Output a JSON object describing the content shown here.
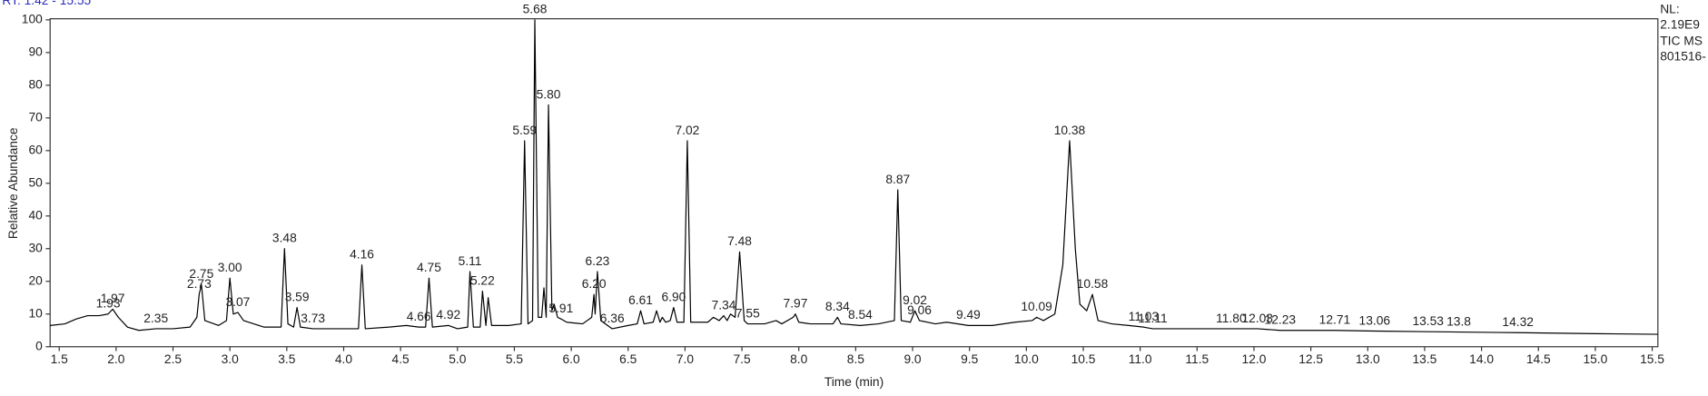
{
  "chart_data": {
    "type": "line",
    "header": "RT: 1.42 - 15.55",
    "info": [
      "NL:",
      "2.19E9",
      "TIC  MS",
      "801516-"
    ],
    "x_label": "Time (min)",
    "y_label": "Relative Abundance",
    "color": "#000000",
    "xlim": [
      1.42,
      15.55
    ],
    "ylim": [
      0,
      100
    ],
    "yticks": [
      0,
      10,
      20,
      30,
      40,
      50,
      60,
      70,
      80,
      90,
      100
    ],
    "xticks": [
      1.5,
      {
        "value": 2,
        "label": "2.0"
      },
      2.5,
      {
        "value": 3,
        "label": "3.0"
      },
      3.5,
      {
        "value": 4,
        "label": "4.0"
      },
      4.5,
      {
        "value": 5,
        "label": "5.0"
      },
      5.5,
      {
        "value": 6,
        "label": "6.0"
      },
      6.5,
      {
        "value": 7,
        "label": "7.0"
      },
      7.5,
      {
        "value": 8,
        "label": "8.0"
      },
      8.5,
      {
        "value": 9,
        "label": "9.0"
      },
      9.5,
      {
        "value": 10,
        "label": "10.0"
      },
      10.5,
      {
        "value": 11,
        "label": "11.0"
      },
      11.5,
      {
        "value": 12,
        "label": "12.0"
      },
      12.5,
      {
        "value": 13,
        "label": "13.0"
      },
      13.5,
      {
        "value": 14,
        "label": "14.0"
      },
      14.5,
      {
        "value": 15,
        "label": "15.0"
      },
      15.5
    ],
    "x": [
      1.42,
      1.55,
      1.65,
      1.75,
      1.85,
      1.93,
      1.97,
      2.02,
      2.1,
      2.2,
      2.35,
      2.5,
      2.65,
      2.71,
      2.73,
      2.75,
      2.78,
      2.9,
      2.97,
      3.0,
      3.03,
      3.07,
      3.12,
      3.3,
      3.45,
      3.48,
      3.51,
      3.56,
      3.59,
      3.62,
      3.73,
      3.9,
      4.13,
      4.16,
      4.19,
      4.4,
      4.55,
      4.66,
      4.72,
      4.75,
      4.78,
      4.92,
      5.0,
      5.09,
      5.11,
      5.14,
      5.2,
      5.22,
      5.25,
      5.27,
      5.3,
      5.45,
      5.56,
      5.59,
      5.62,
      5.66,
      5.68,
      5.71,
      5.74,
      5.76,
      5.78,
      5.8,
      5.83,
      5.85,
      5.88,
      5.91,
      5.96,
      6.1,
      6.18,
      6.2,
      6.21,
      6.23,
      6.26,
      6.36,
      6.5,
      6.58,
      6.61,
      6.64,
      6.72,
      6.75,
      6.78,
      6.8,
      6.83,
      6.87,
      6.9,
      6.93,
      6.99,
      7.02,
      7.05,
      7.2,
      7.25,
      7.3,
      7.34,
      7.37,
      7.4,
      7.44,
      7.48,
      7.52,
      7.55,
      7.7,
      7.8,
      7.85,
      7.95,
      7.97,
      8.0,
      8.1,
      8.3,
      8.34,
      8.37,
      8.54,
      8.7,
      8.84,
      8.87,
      8.9,
      8.98,
      9.02,
      9.06,
      9.2,
      9.3,
      9.49,
      9.7,
      9.9,
      10.05,
      10.09,
      10.15,
      10.25,
      10.32,
      10.38,
      10.43,
      10.47,
      10.5,
      10.53,
      10.58,
      10.63,
      10.75,
      10.9,
      11.03,
      11.11,
      11.4,
      11.8,
      12.03,
      12.23,
      12.71,
      13.06,
      13.53,
      13.8,
      14.32,
      15.0,
      15.55
    ],
    "values": [
      6.5,
      7,
      8.5,
      9.5,
      9.5,
      10,
      11.5,
      9,
      6,
      5,
      5.5,
      5.5,
      6,
      9,
      16,
      19,
      8,
      6.5,
      8,
      21,
      10,
      10.5,
      8,
      6,
      6,
      30,
      7,
      6,
      12,
      6,
      5.5,
      5.5,
      5.5,
      25,
      5.5,
      6,
      6.5,
      6,
      6,
      21,
      6,
      6.5,
      5.5,
      6,
      23,
      6,
      6,
      17,
      6.5,
      15,
      6.5,
      6.5,
      7,
      63,
      7,
      8,
      100,
      9,
      9,
      18,
      9,
      74,
      11,
      13,
      9,
      8.5,
      7.5,
      7,
      9,
      16,
      10,
      23,
      8,
      5.5,
      6.5,
      7,
      11,
      7,
      7.5,
      11,
      7.5,
      9,
      7.5,
      8,
      12,
      7.5,
      7.5,
      63,
      7.5,
      7.5,
      9,
      8,
      9.5,
      8,
      10,
      9,
      29,
      8,
      7,
      7,
      8,
      7,
      9,
      10,
      7.5,
      7,
      7,
      9,
      7,
      6.5,
      7,
      8,
      48,
      8,
      7.5,
      11,
      8,
      7,
      7.5,
      6.5,
      6.5,
      7.5,
      8,
      9,
      8,
      10,
      25,
      63,
      30,
      13,
      12,
      11,
      16,
      8,
      7,
      6.5,
      6,
      5.5,
      5.5,
      5.5,
      5.5,
      5,
      5,
      4.8,
      4.6,
      4.5,
      4.3,
      4,
      3.8
    ],
    "peak_labels": [
      1.93,
      1.97,
      2.35,
      2.73,
      2.75,
      {
        "value": 3,
        "label": "3.00"
      },
      3.07,
      3.48,
      3.59,
      3.73,
      4.16,
      4.66,
      4.75,
      4.92,
      5.11,
      5.22,
      5.59,
      5.68,
      {
        "value": 5.8,
        "label": "5.80"
      },
      5.91,
      {
        "value": 6.2,
        "label": "6.20"
      },
      6.23,
      6.36,
      6.61,
      {
        "value": 6.9,
        "label": "6.90"
      },
      7.02,
      7.34,
      7.48,
      7.55,
      7.97,
      8.34,
      8.54,
      8.87,
      9.02,
      9.06,
      9.49,
      10.09,
      10.38,
      10.58,
      11.03,
      11.11,
      {
        "value": 11.8,
        "label": "11.80"
      },
      12.03,
      12.23,
      12.71,
      13.06,
      13.53,
      13.8,
      14.32
    ]
  }
}
